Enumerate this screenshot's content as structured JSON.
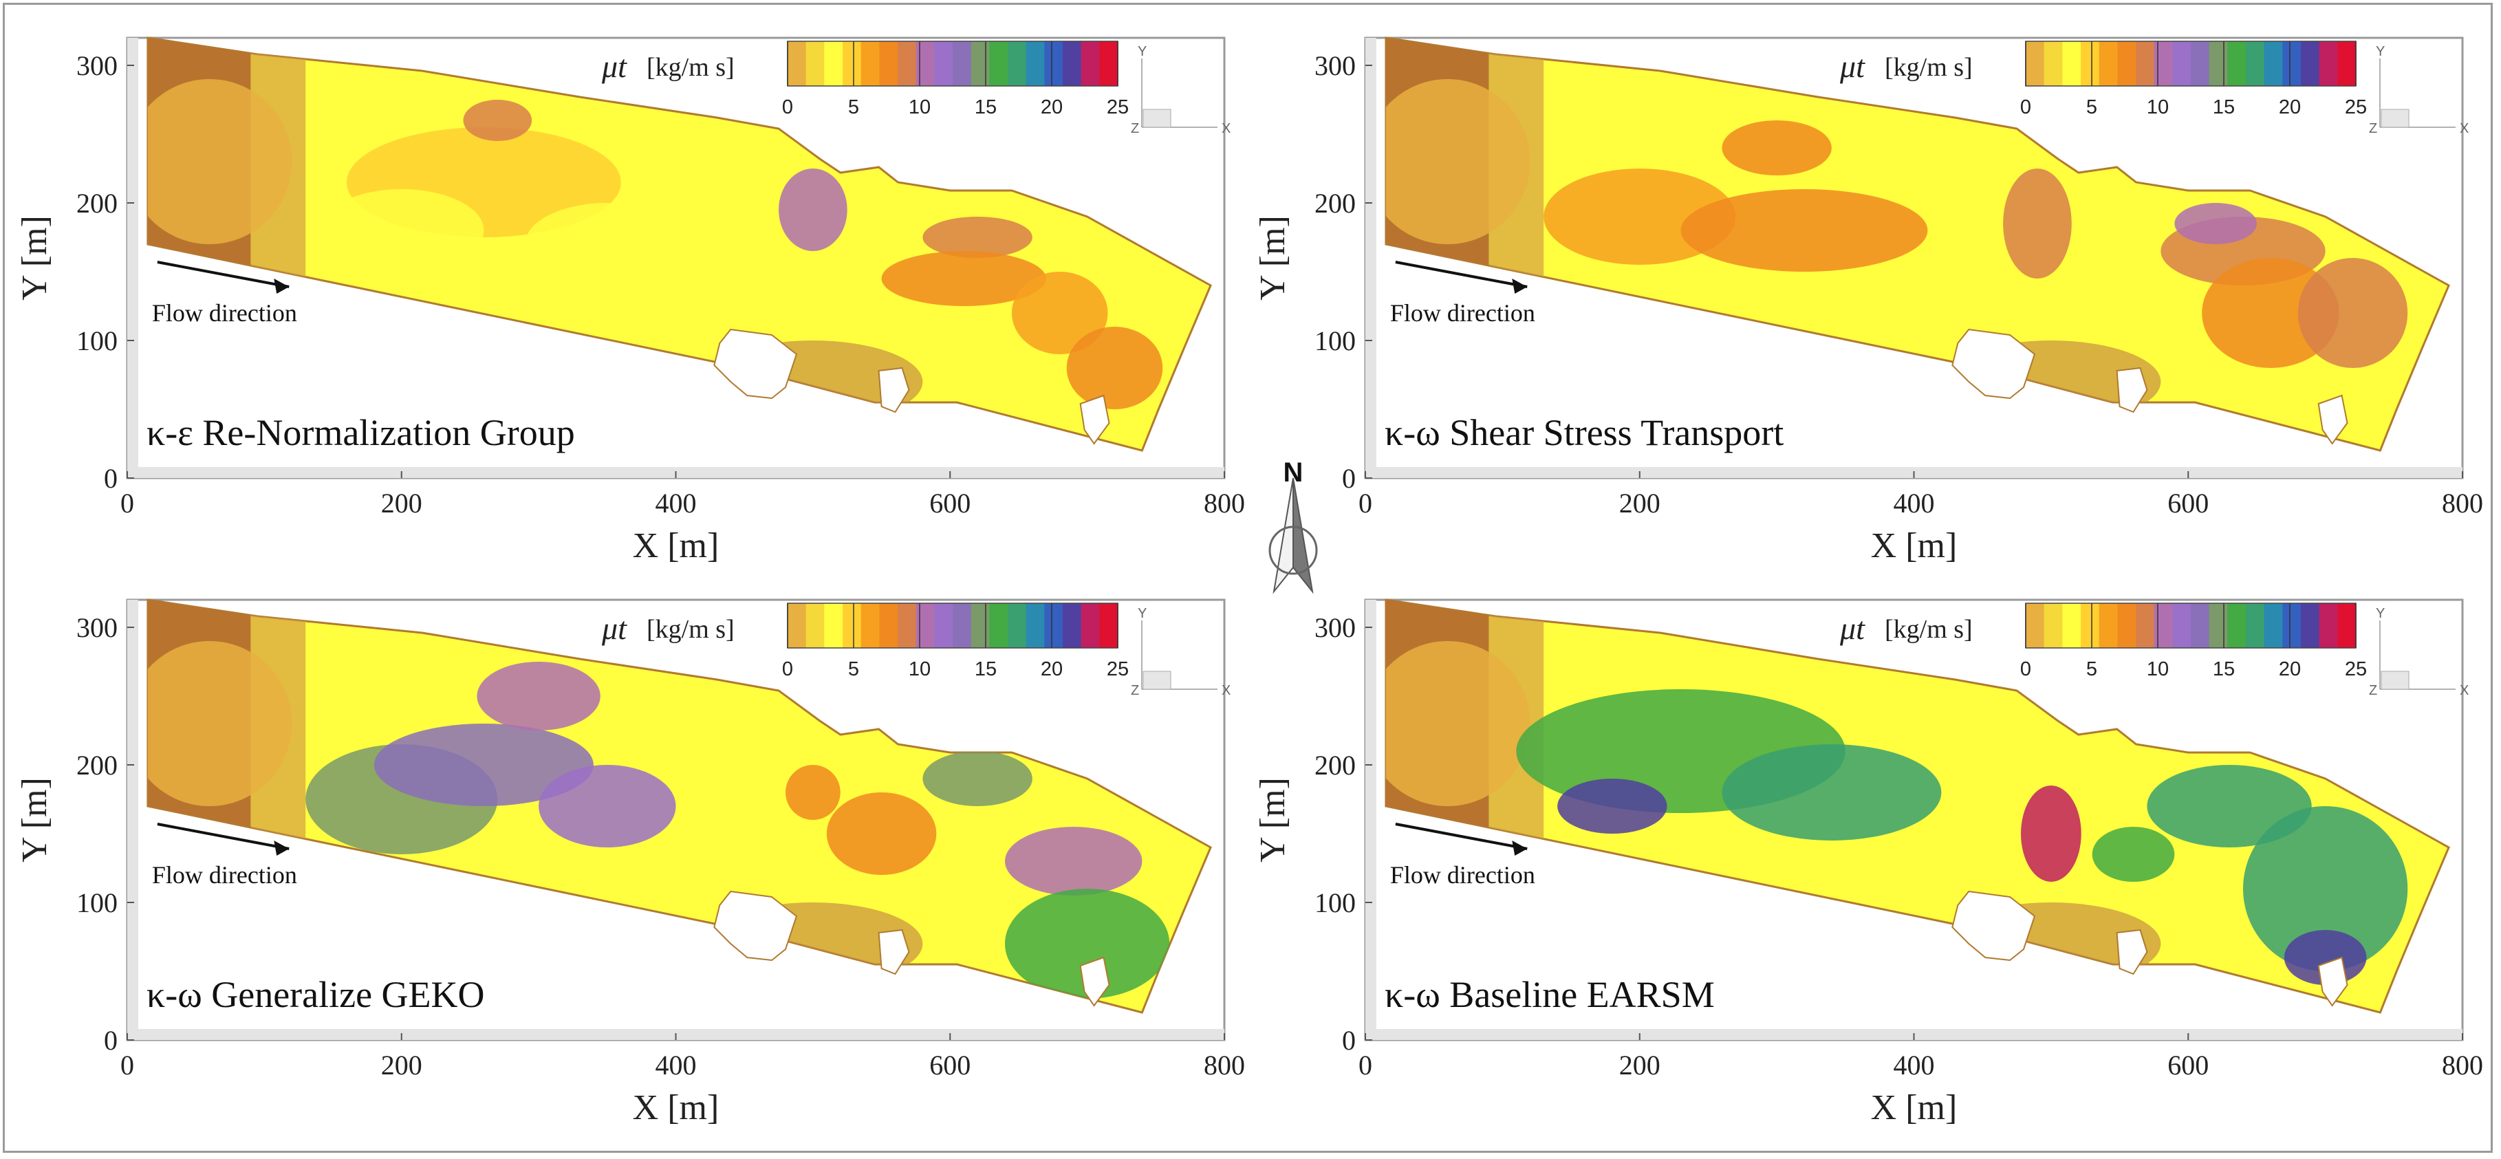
{
  "colormap": {
    "symbol": "μt",
    "unit": "[kg/m s]",
    "min": 0,
    "max": 25,
    "ticks": [
      0,
      5,
      10,
      15,
      20,
      25
    ],
    "colors": [
      "#e8b040",
      "#f5d83a",
      "#ffff40",
      "#ffd030",
      "#f7a020",
      "#f08a20",
      "#d8804a",
      "#b070b0",
      "#9a70c8",
      "#8a70b8",
      "#7a9a6a",
      "#44aa44",
      "#3aa070",
      "#2a8ab0",
      "#3560c0",
      "#5040a0",
      "#c02060",
      "#e01030"
    ]
  },
  "north_label": "N",
  "chart_data": [
    {
      "type": "heatmap",
      "title": "κ-ε Re-Normalization Group",
      "annotation": "Flow direction",
      "xlabel": "X [m]",
      "ylabel": "Y [m]",
      "xlim": [
        0,
        800
      ],
      "ylim": [
        0,
        320
      ],
      "xticks": [
        0,
        200,
        400,
        600,
        800
      ],
      "yticks": [
        0,
        100,
        200,
        300
      ],
      "triad": {
        "y": "Y",
        "x": "X",
        "z": "Z"
      },
      "approx_max_value": 12
    },
    {
      "type": "heatmap",
      "title": "κ-ω Shear Stress Transport",
      "annotation": "Flow direction",
      "xlabel": "X [m]",
      "ylabel": "Y [m]",
      "xlim": [
        0,
        800
      ],
      "ylim": [
        0,
        320
      ],
      "xticks": [
        0,
        200,
        400,
        600,
        800
      ],
      "yticks": [
        0,
        100,
        200,
        300
      ],
      "triad": {
        "y": "Y",
        "x": "X",
        "z": "Z"
      },
      "approx_max_value": 14
    },
    {
      "type": "heatmap",
      "title": "κ-ω Generalize GEKO",
      "annotation": "Flow direction",
      "xlabel": "X [m]",
      "ylabel": "Y [m]",
      "xlim": [
        0,
        800
      ],
      "ylim": [
        0,
        320
      ],
      "xticks": [
        0,
        200,
        400,
        600,
        800
      ],
      "yticks": [
        0,
        100,
        200,
        300
      ],
      "triad": {
        "y": "Y",
        "x": "X",
        "z": "Z"
      },
      "approx_max_value": 18
    },
    {
      "type": "heatmap",
      "title": "κ-ω Baseline EARSM",
      "annotation": "Flow direction",
      "xlabel": "X [m]",
      "ylabel": "Y [m]",
      "xlim": [
        0,
        800
      ],
      "ylim": [
        0,
        320
      ],
      "xticks": [
        0,
        200,
        400,
        600,
        800
      ],
      "yticks": [
        0,
        100,
        200,
        300
      ],
      "triad": {
        "y": "Y",
        "x": "X",
        "z": "Z"
      },
      "approx_max_value": 25
    }
  ]
}
